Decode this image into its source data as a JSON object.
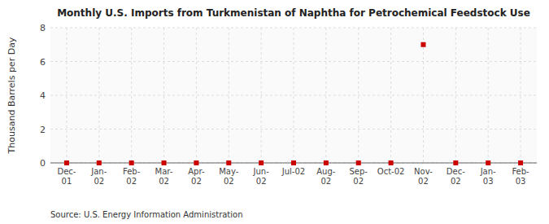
{
  "chart_data": {
    "type": "scatter",
    "title": "Monthly U.S. Imports from Turkmenistan of Naphtha for Petrochemical Feedstock Use",
    "y_label": "Thousand Barrels per Day",
    "source": "Source: U.S. Energy Information Administration",
    "categories": [
      "Dec-\n01",
      "Jan-\n02",
      "Feb-\n02",
      "Mar-\n02",
      "Apr-\n02",
      "May-\n02",
      "Jun-\n02",
      "Jul-02",
      "Aug-\n02",
      "Sep-\n02",
      "Oct-02",
      "Nov-\n02",
      "Dec-\n02",
      "Jan-\n03",
      "Feb-\n03"
    ],
    "values": [
      0,
      0,
      0,
      0,
      0,
      0,
      0,
      0,
      0,
      0,
      0,
      7,
      0,
      0,
      0
    ],
    "color": "#cc0000",
    "marker": "square",
    "ylim": [
      0,
      8
    ],
    "yticks": [
      0,
      2,
      4,
      6,
      8
    ],
    "grid": true
  }
}
